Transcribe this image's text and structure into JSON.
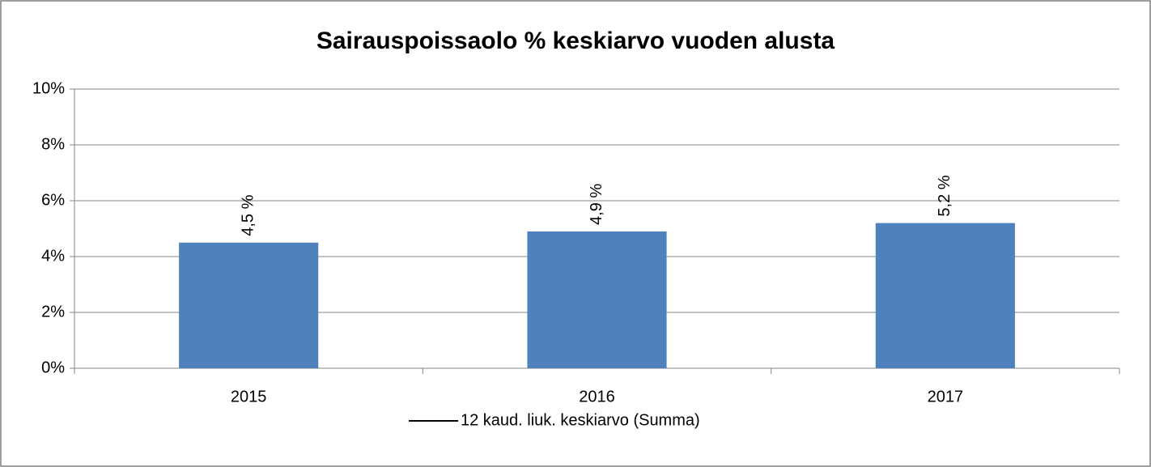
{
  "chart_data": {
    "type": "bar",
    "title": "Sairauspoissaolo %  keskiarvo vuoden alusta",
    "categories": [
      "2015",
      "2016",
      "2017"
    ],
    "values": [
      4.5,
      4.9,
      5.2
    ],
    "value_labels": [
      "4,5 %",
      "4,9 %",
      "5,2 %"
    ],
    "color": "#4f81bd",
    "ylim": [
      0,
      10
    ],
    "yticks": [
      {
        "value": 0,
        "label": "0%"
      },
      {
        "value": 2,
        "label": "2%"
      },
      {
        "value": 4,
        "label": "4%"
      },
      {
        "value": 6,
        "label": "6%"
      },
      {
        "value": 8,
        "label": "8%"
      },
      {
        "value": 10,
        "label": "10%"
      }
    ],
    "grid": true,
    "legend": {
      "position": "bottom",
      "entries": [
        {
          "name": "12 kaud. liuk. keskiarvo (Summa)",
          "color": "#000000"
        }
      ]
    }
  }
}
